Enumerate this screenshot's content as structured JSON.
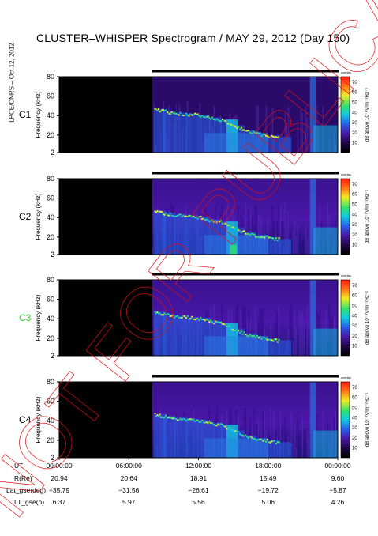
{
  "title": "CLUSTER–WHISPER Spectrogram / MAY 29, 2012 (Day 150)",
  "side_credit": "LPCE/CNRS – Oct 12, 2012",
  "watermark": "NOT FOR PUBLICATION",
  "colors": {
    "s1": "#000000",
    "s2": "#1e0640",
    "s3": "#4a17a8",
    "s4": "#2563e6",
    "s5": "#14c8e0",
    "s6": "#31e06a",
    "s7": "#f0ee28",
    "s8": "#ff7a18",
    "s9": "#ff1a10",
    "title_c3": "#2bd42b",
    "watermark": "#e01010"
  },
  "chart_data": {
    "type": "heatmap",
    "panels": [
      {
        "label": "C1",
        "label_color": "#000000"
      },
      {
        "label": "C2",
        "label_color": "#000000"
      },
      {
        "label": "C3",
        "label_color": "#2bd42b"
      },
      {
        "label": "C4",
        "label_color": "#000000"
      }
    ],
    "ylabel": "Frequency (kHz)",
    "yticks": [
      "2",
      "20",
      "40",
      "60",
      "80"
    ],
    "ylim": [
      2,
      80
    ],
    "xticks": [
      "00:00:00",
      "06:00:00",
      "12:00:00",
      "18:00:00",
      "00:00:00"
    ],
    "xlim_hours": [
      0,
      24
    ],
    "data_start_hours": 8,
    "colorbar": {
      "label": "dB above 10⁻⁸V²m⁻²Hz⁻¹",
      "unit_tag": "overlay",
      "ticks": [
        "10",
        "20",
        "30",
        "40",
        "50",
        "60",
        "70"
      ],
      "range": [
        0,
        75
      ]
    },
    "plasma_line_khz": [
      [
        8.2,
        47
      ],
      [
        9,
        45
      ],
      [
        10,
        43
      ],
      [
        11,
        42
      ],
      [
        12,
        41
      ],
      [
        13,
        38
      ],
      [
        14,
        36
      ],
      [
        15,
        30
      ],
      [
        16,
        25
      ],
      [
        17,
        22
      ],
      [
        18,
        20
      ],
      [
        19,
        18
      ]
    ],
    "orbit_table": {
      "rows": [
        {
          "label": "UT",
          "values": [
            "00:00:00",
            "06:00:00",
            "12:00:00",
            "18:00:00",
            "00:00:00"
          ]
        },
        {
          "label": "R(Re)",
          "values": [
            "20.94",
            "20.64",
            "18.91",
            "15.49",
            "9.60"
          ]
        },
        {
          "label": "Lat_gse(deg)",
          "values": [
            "−35.79",
            "−31.56",
            "−26.61",
            "−19.72",
            "−5.87"
          ]
        },
        {
          "label": "LT_gse(h)",
          "values": [
            "6.37",
            "5.97",
            "5.56",
            "5.06",
            "4.26"
          ]
        }
      ]
    }
  }
}
